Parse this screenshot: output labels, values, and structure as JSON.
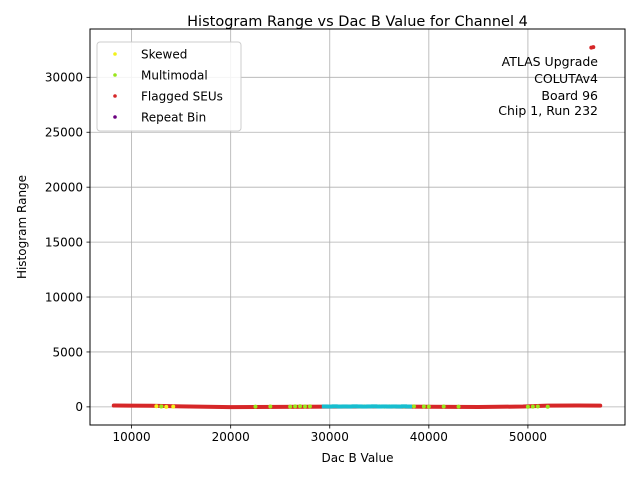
{
  "chart_data": {
    "type": "scatter",
    "title": "Histogram Range vs Dac B Value for Channel 4",
    "xlabel": "Dac B Value",
    "ylabel": "Histogram Range",
    "xlim": [
      5800,
      59800
    ],
    "ylim": [
      -1650,
      34400
    ],
    "xticks": [
      10000,
      20000,
      30000,
      40000,
      50000
    ],
    "yticks": [
      0,
      5000,
      10000,
      15000,
      20000,
      25000,
      30000
    ],
    "grid": true,
    "legend_position": "top-left",
    "annotation": [
      "ATLAS Upgrade",
      "COLUTAv4",
      "Board 96",
      "Chip 1, Run 232"
    ],
    "annotation_position": "top-right",
    "series": [
      {
        "name": "Skewed",
        "color": "#f2f21a",
        "x": [
          12500,
          13000,
          13500,
          14200,
          33500,
          36500
        ],
        "y": [
          60,
          30,
          0,
          20,
          40,
          30
        ]
      },
      {
        "name": "Multimodal",
        "color": "#99e61a",
        "x": [
          13000,
          22500,
          24000,
          26000,
          26500,
          27000,
          27500,
          28000,
          33000,
          35000,
          35500,
          36000,
          37500,
          38500,
          39500,
          40000,
          41500,
          43000,
          50000,
          50500,
          51000,
          52000
        ],
        "y": [
          30,
          20,
          30,
          20,
          40,
          60,
          30,
          40,
          30,
          50,
          20,
          40,
          30,
          50,
          30,
          20,
          30,
          20,
          10,
          20,
          30,
          10
        ]
      },
      {
        "name": "Flagged SEUs",
        "color": "#d62728",
        "x": [
          56400,
          56600
        ],
        "y": [
          32700,
          32750
        ]
      },
      {
        "name": "Repeat Bin",
        "color": "#6b0080",
        "x": [],
        "y": []
      },
      {
        "name": "",
        "color": "#17becf",
        "x": [
          29500,
          30000,
          30500,
          31000,
          31500,
          32000,
          32500,
          33000,
          33500,
          34000,
          34500,
          35000,
          35500,
          36000,
          36500,
          37000,
          37500,
          38000
        ],
        "y": [
          40,
          30,
          50,
          30,
          40,
          30,
          50,
          40,
          30,
          40,
          50,
          30,
          40,
          30,
          40,
          30,
          50,
          30
        ]
      }
    ],
    "band": {
      "name": "Flagged SEUs",
      "color": "#d62728",
      "x": [
        8200,
        12000,
        15000,
        20000,
        25000,
        30000,
        35000,
        40000,
        45000,
        49500,
        52000,
        55000,
        57300
      ],
      "y": [
        120,
        100,
        40,
        -20,
        0,
        20,
        30,
        10,
        -10,
        30,
        110,
        130,
        110
      ]
    }
  }
}
